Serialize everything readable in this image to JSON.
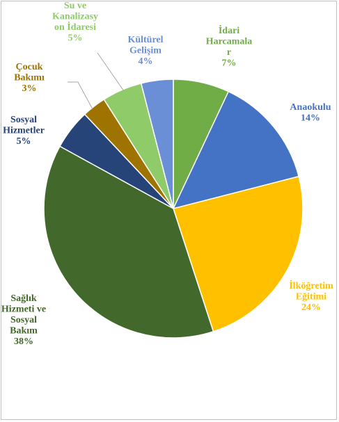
{
  "chart_data": {
    "type": "pie",
    "title": "",
    "slices": [
      {
        "label": "İdari Harcamalar",
        "label_lines": [
          "İdari",
          "Harcamala",
          "r"
        ],
        "pct_text": "7%",
        "value": 7,
        "color": "#70ad47",
        "label_color": "#70ad47"
      },
      {
        "label": "Anaokulu",
        "label_lines": [
          "Anaokulu"
        ],
        "pct_text": "14%",
        "value": 14,
        "color": "#4472c4",
        "label_color": "#4472c4"
      },
      {
        "label": "İlköğretim Eğitimi",
        "label_lines": [
          "İlköğretim",
          "Eğitimi"
        ],
        "pct_text": "24%",
        "value": 24,
        "color": "#ffc000",
        "label_color": "#ffc000"
      },
      {
        "label": "Sağlık Hizmeti ve Sosyal Bakım",
        "label_lines": [
          "Sağlık",
          "Hizmeti ve",
          "Sosyal",
          "Bakım"
        ],
        "pct_text": "38%",
        "value": 38,
        "color": "#43682b",
        "label_color": "#43682b"
      },
      {
        "label": "Sosyal Hizmetler",
        "label_lines": [
          "Sosyal",
          "Hizmetler"
        ],
        "pct_text": "5%",
        "value": 5,
        "color": "#264478",
        "label_color": "#264478"
      },
      {
        "label": "Çocuk Bakımı",
        "label_lines": [
          "Çocuk",
          "Bakımı"
        ],
        "pct_text": "3%",
        "value": 3,
        "color": "#9e7300",
        "label_color": "#9e7300"
      },
      {
        "label": "Su ve Kanalizasyon İdaresi",
        "label_lines": [
          "Su ve",
          "Kanalizasy",
          "on İdaresi"
        ],
        "pct_text": "5%",
        "value": 5,
        "color": "#8fcc69",
        "label_color": "#8fcc69"
      },
      {
        "label": "Kültürel Gelişim",
        "label_lines": [
          "Kültürel",
          "Gelişim"
        ],
        "pct_text": "4%",
        "value": 4,
        "color": "#6a8fd6",
        "label_color": "#6a8fd6"
      }
    ]
  }
}
